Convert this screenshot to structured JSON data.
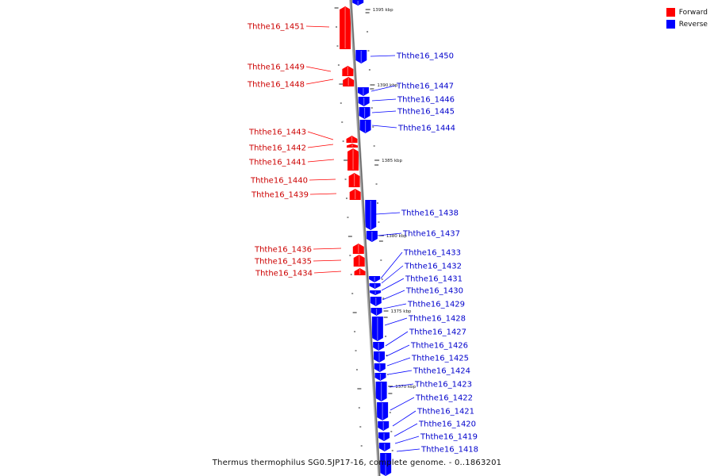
{
  "legend": {
    "items": [
      {
        "label": "Forward",
        "color": "#ff0000"
      },
      {
        "label": "Reverse",
        "color": "#0000ff"
      }
    ]
  },
  "caption": "Thermus thermophilus SG0.5JP17-16, complete genome. - 0..1863201",
  "colors": {
    "forward": "#ff0000",
    "reverse": "#0000ff",
    "backbone": "#a6a6a6"
  },
  "scale_labels": [
    "1395 kbp",
    "1390 kbp",
    "1385 kbp",
    "1380 kbp",
    "1375 kbp",
    "1370 kbp"
  ],
  "genes": {
    "forward": [
      "Ththe16_1451",
      "Ththe16_1449",
      "Ththe16_1448",
      "Ththe16_1443",
      "Ththe16_1442",
      "Ththe16_1441",
      "Ththe16_1440",
      "Ththe16_1439",
      "Ththe16_1436",
      "Ththe16_1435",
      "Ththe16_1434"
    ],
    "reverse": [
      "Ththe16_1450",
      "Ththe16_1447",
      "Ththe16_1446",
      "Ththe16_1445",
      "Ththe16_1444",
      "Ththe16_1438",
      "Ththe16_1437",
      "Ththe16_1433",
      "Ththe16_1432",
      "Ththe16_1431",
      "Ththe16_1430",
      "Ththe16_1429",
      "Ththe16_1428",
      "Ththe16_1427",
      "Ththe16_1426",
      "Ththe16_1425",
      "Ththe16_1424",
      "Ththe16_1423",
      "Ththe16_1422",
      "Ththe16_1421",
      "Ththe16_1420",
      "Ththe16_1419",
      "Ththe16_1418"
    ]
  }
}
